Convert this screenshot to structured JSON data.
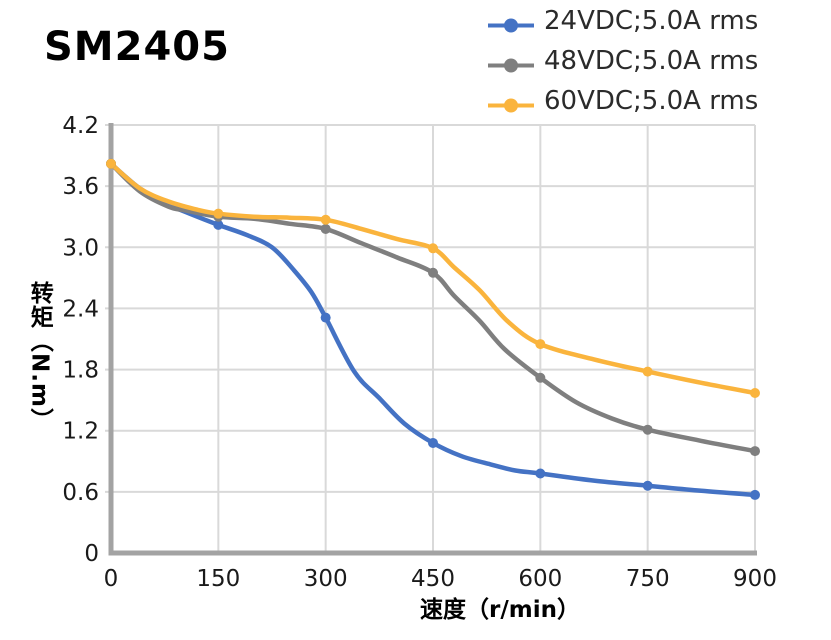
{
  "title": "SM2405",
  "legend": [
    {
      "label": "24VDC;5.0A rms",
      "color": "#4472C4"
    },
    {
      "label": "48VDC;5.0A rms",
      "color": "#7F7F7F"
    },
    {
      "label": "60VDC;5.0A rms",
      "color": "#FAB43D"
    }
  ],
  "axes": {
    "x_title": "速度（r/min）",
    "y_title": "转矩（N.m）"
  },
  "colors": {
    "grid": "#D9D9D9",
    "axis": "#A3A3A3",
    "tick_text": "#1A1A1A",
    "background": "#FFFFFF"
  },
  "chart_data": {
    "type": "line",
    "title": "SM2405",
    "xlabel": "速度（r/min）",
    "ylabel": "转矩（N.m）",
    "xlim": [
      0,
      900
    ],
    "ylim": [
      0,
      4.2
    ],
    "grid": true,
    "legend_position": "top-right",
    "x_tick_values": [
      0,
      150,
      300,
      450,
      600,
      750,
      900
    ],
    "x_tick_labels": [
      "0",
      "150",
      "300",
      "450",
      "600",
      "750",
      "900"
    ],
    "y_tick_values": [
      0,
      0.6,
      1.2,
      1.8,
      2.4,
      3.0,
      3.6,
      4.2
    ],
    "y_tick_labels": [
      "0",
      "0.6",
      "1.2",
      "1.8",
      "2.4",
      "3.0",
      "3.6",
      "4.2"
    ],
    "marker_x": [
      0,
      150,
      300,
      450,
      600,
      750,
      900
    ],
    "series": [
      {
        "name": "24VDC;5.0A rms",
        "color": "#4472C4",
        "marker_values": [
          3.82,
          3.22,
          2.31,
          1.08,
          0.78,
          0.66,
          0.57
        ],
        "points": [
          [
            0,
            3.82
          ],
          [
            40,
            3.58
          ],
          [
            80,
            3.42
          ],
          [
            110,
            3.33
          ],
          [
            150,
            3.22
          ],
          [
            190,
            3.12
          ],
          [
            225,
            3.0
          ],
          [
            255,
            2.78
          ],
          [
            280,
            2.56
          ],
          [
            300,
            2.31
          ],
          [
            340,
            1.78
          ],
          [
            375,
            1.52
          ],
          [
            410,
            1.27
          ],
          [
            450,
            1.08
          ],
          [
            490,
            0.95
          ],
          [
            530,
            0.87
          ],
          [
            565,
            0.81
          ],
          [
            600,
            0.78
          ],
          [
            675,
            0.71
          ],
          [
            750,
            0.66
          ],
          [
            825,
            0.61
          ],
          [
            900,
            0.57
          ]
        ]
      },
      {
        "name": "48VDC;5.0A rms",
        "color": "#7F7F7F",
        "marker_values": [
          3.82,
          3.3,
          3.18,
          2.75,
          1.72,
          1.21,
          1.0
        ],
        "points": [
          [
            0,
            3.82
          ],
          [
            40,
            3.55
          ],
          [
            80,
            3.4
          ],
          [
            105,
            3.36
          ],
          [
            150,
            3.3
          ],
          [
            200,
            3.28
          ],
          [
            250,
            3.23
          ],
          [
            300,
            3.18
          ],
          [
            350,
            3.04
          ],
          [
            400,
            2.9
          ],
          [
            450,
            2.75
          ],
          [
            480,
            2.52
          ],
          [
            515,
            2.28
          ],
          [
            550,
            2.0
          ],
          [
            600,
            1.72
          ],
          [
            650,
            1.48
          ],
          [
            700,
            1.32
          ],
          [
            750,
            1.21
          ],
          [
            825,
            1.1
          ],
          [
            900,
            1.0
          ]
        ]
      },
      {
        "name": "60VDC;5.0A rms",
        "color": "#FAB43D",
        "marker_values": [
          3.82,
          3.33,
          3.27,
          2.99,
          2.05,
          1.78,
          1.57
        ],
        "points": [
          [
            0,
            3.82
          ],
          [
            40,
            3.58
          ],
          [
            80,
            3.45
          ],
          [
            120,
            3.37
          ],
          [
            150,
            3.33
          ],
          [
            200,
            3.3
          ],
          [
            250,
            3.29
          ],
          [
            300,
            3.27
          ],
          [
            350,
            3.18
          ],
          [
            400,
            3.08
          ],
          [
            450,
            2.99
          ],
          [
            480,
            2.8
          ],
          [
            515,
            2.58
          ],
          [
            555,
            2.27
          ],
          [
            600,
            2.05
          ],
          [
            675,
            1.9
          ],
          [
            750,
            1.78
          ],
          [
            825,
            1.67
          ],
          [
            900,
            1.57
          ]
        ]
      }
    ]
  }
}
